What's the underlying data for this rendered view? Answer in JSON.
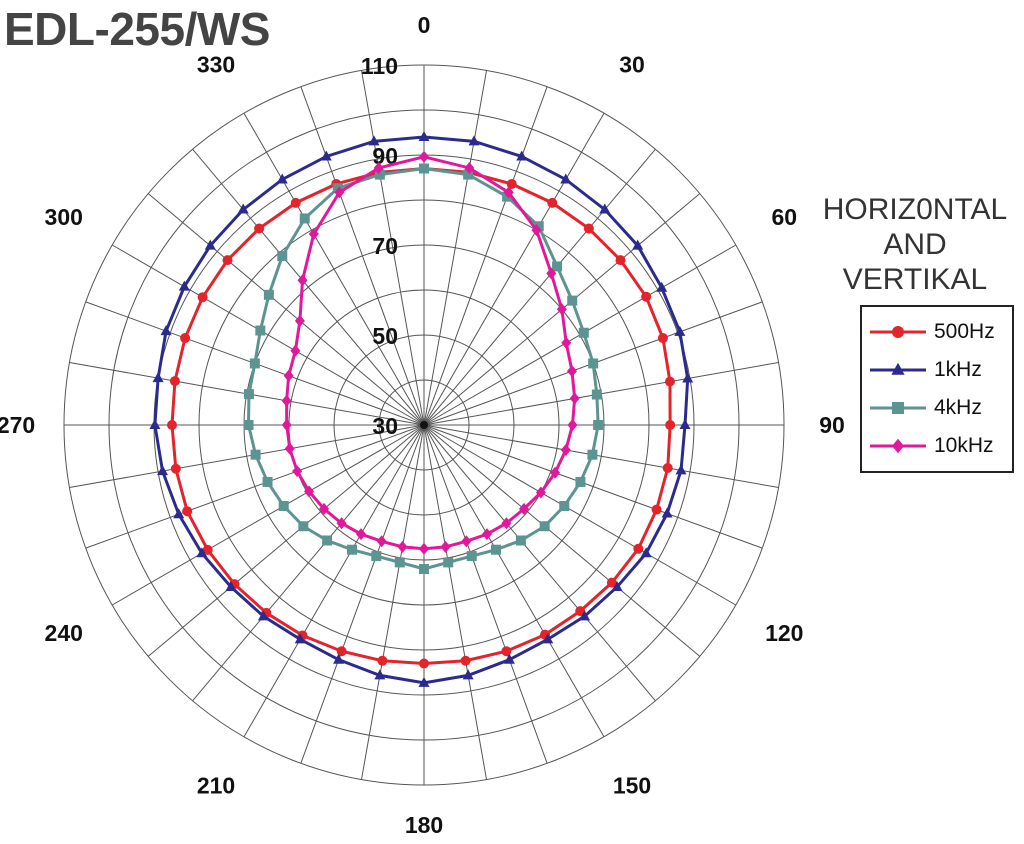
{
  "title": "EDL-255/WS",
  "chart_data": {
    "type": "polar-line",
    "title": "EDL-255/WS",
    "legend_title": [
      "HORIZ0NTAL",
      "AND",
      "VERTIKAL"
    ],
    "legend_placement": "right",
    "angle_labels": [
      "0",
      "30",
      "60",
      "90",
      "120",
      "150",
      "180",
      "210",
      "240",
      "270",
      "300",
      "330"
    ],
    "radial_labels": [
      "30",
      "50",
      "70",
      "90",
      "110"
    ],
    "rlim": [
      30,
      110
    ],
    "grid": true,
    "angles": [
      0,
      10,
      20,
      30,
      40,
      50,
      60,
      70,
      80,
      90,
      100,
      110,
      120,
      130,
      140,
      150,
      160,
      170,
      180,
      190,
      200,
      210,
      220,
      230,
      240,
      250,
      260,
      270,
      280,
      290,
      300,
      310,
      320,
      330,
      340,
      350
    ],
    "series": [
      {
        "name": "500Hz",
        "color": "#e3242b",
        "marker": "circle",
        "values": [
          87,
          87,
          87,
          87,
          87,
          87,
          87,
          86.5,
          85.5,
          84.7,
          85,
          85,
          85,
          84.5,
          84,
          83.8,
          83.5,
          83.2,
          83,
          83.2,
          83.5,
          84,
          84.5,
          85,
          85.5,
          86,
          86,
          86,
          86.2,
          86.5,
          86.8,
          87,
          87,
          87,
          87,
          87
        ]
      },
      {
        "name": "1kHz",
        "color": "#2b2b8e",
        "marker": "triangle",
        "values": [
          94,
          94,
          93.5,
          93,
          92.5,
          92,
          91,
          90.5,
          89.5,
          88,
          88,
          87.5,
          87,
          86,
          85.5,
          85,
          85.5,
          86.5,
          87.3,
          86.5,
          85.5,
          85,
          85.5,
          86,
          87,
          88,
          89,
          89.8,
          90,
          91,
          91.5,
          92,
          92.5,
          93,
          93.5,
          94
        ]
      },
      {
        "name": "4kHz",
        "color": "#5b9491",
        "marker": "square",
        "values": [
          87,
          86.5,
          84,
          81,
          76,
          73,
          71,
          70,
          69,
          68.7,
          68,
          67,
          66,
          65,
          63.5,
          62,
          61,
          61,
          62,
          61,
          61,
          62,
          63.5,
          65,
          66,
          67,
          68,
          69,
          69.5,
          70,
          72,
          75,
          79,
          83,
          86,
          86.5
        ]
      },
      {
        "name": "10kHz",
        "color": "#e2189c",
        "marker": "diamond",
        "values": [
          89.6,
          88,
          85,
          80,
          74,
          70,
          66.5,
          65,
          64,
          63,
          62,
          61,
          60,
          59,
          58.5,
          58,
          57.5,
          57.5,
          57.5,
          57.5,
          57.5,
          58,
          58.5,
          59,
          59.5,
          60,
          60.3,
          60.5,
          61,
          62,
          63,
          66,
          72,
          79,
          85,
          88
        ]
      }
    ]
  }
}
